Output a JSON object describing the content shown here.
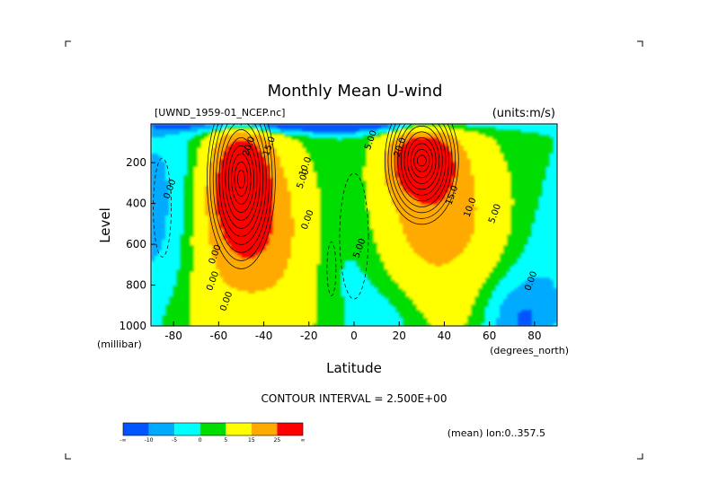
{
  "chart_data": {
    "type": "heatmap",
    "subtype": "filled-contour",
    "title": "Monthly Mean U-wind",
    "file_label": "[UWND_1959-01_NCEP.nc]",
    "units_label": "(units:m/s)",
    "xlabel": "Latitude",
    "ylabel": "Level",
    "x_unit": "(degrees_north)",
    "y_unit": "(millibar)",
    "xlim": [
      -90,
      90
    ],
    "ylim": [
      1000,
      10
    ],
    "x_ticks": [
      -80,
      -60,
      -40,
      -20,
      0,
      20,
      40,
      60,
      80
    ],
    "x_tick_labels": [
      "-80",
      "-60",
      "-40",
      "-20",
      "0",
      "20",
      "40",
      "60",
      "80"
    ],
    "y_ticks": [
      200,
      400,
      600,
      800,
      1000
    ],
    "y_tick_labels": [
      "200",
      "400",
      "600",
      "800",
      "1000"
    ],
    "contour_interval_text": "CONTOUR INTERVAL = 2.500E+00",
    "mean_text": "(mean) lon:0..357.5",
    "colorbar": {
      "colors": [
        "#0055ff",
        "#00aaff",
        "#00ffff",
        "#00dd00",
        "#ffff00",
        "#ffaa00",
        "#ff0000"
      ],
      "labels": [
        "-∞",
        "-10",
        "-5",
        "0",
        "5",
        "15",
        "25",
        "∞"
      ]
    },
    "jets": [
      {
        "name": "southern-jet",
        "lat": -50,
        "level": 280,
        "max": 30
      },
      {
        "name": "northern-jet",
        "lat": 30,
        "level": 190,
        "max": 32
      }
    ],
    "contour_labels": [
      {
        "text": "5.00",
        "lat": -50,
        "level": 20
      },
      {
        "text": "20.0",
        "lat": -47,
        "level": 170
      },
      {
        "text": "15.0",
        "lat": -38,
        "level": 170
      },
      {
        "text": "10.0",
        "lat": -22,
        "level": 270
      },
      {
        "text": "5.00",
        "lat": -23,
        "level": 330
      },
      {
        "text": "0.00",
        "lat": -82,
        "level": 380
      },
      {
        "text": "0.00",
        "lat": -21,
        "level": 530
      },
      {
        "text": "5.00",
        "lat": 2,
        "level": 670
      },
      {
        "text": "5.00",
        "lat": 7,
        "level": 140
      },
      {
        "text": "20.0",
        "lat": 20,
        "level": 175
      },
      {
        "text": "15.0",
        "lat": 43,
        "level": 410
      },
      {
        "text": "10.0",
        "lat": 51,
        "level": 470
      },
      {
        "text": "5.00",
        "lat": 62,
        "level": 500
      },
      {
        "text": "0.00",
        "lat": 78,
        "level": 830
      },
      {
        "text": "0.00",
        "lat": -62,
        "level": 700
      },
      {
        "text": "0.00",
        "lat": -57,
        "level": 930
      },
      {
        "text": "0.00",
        "lat": -63,
        "level": 830
      }
    ]
  }
}
